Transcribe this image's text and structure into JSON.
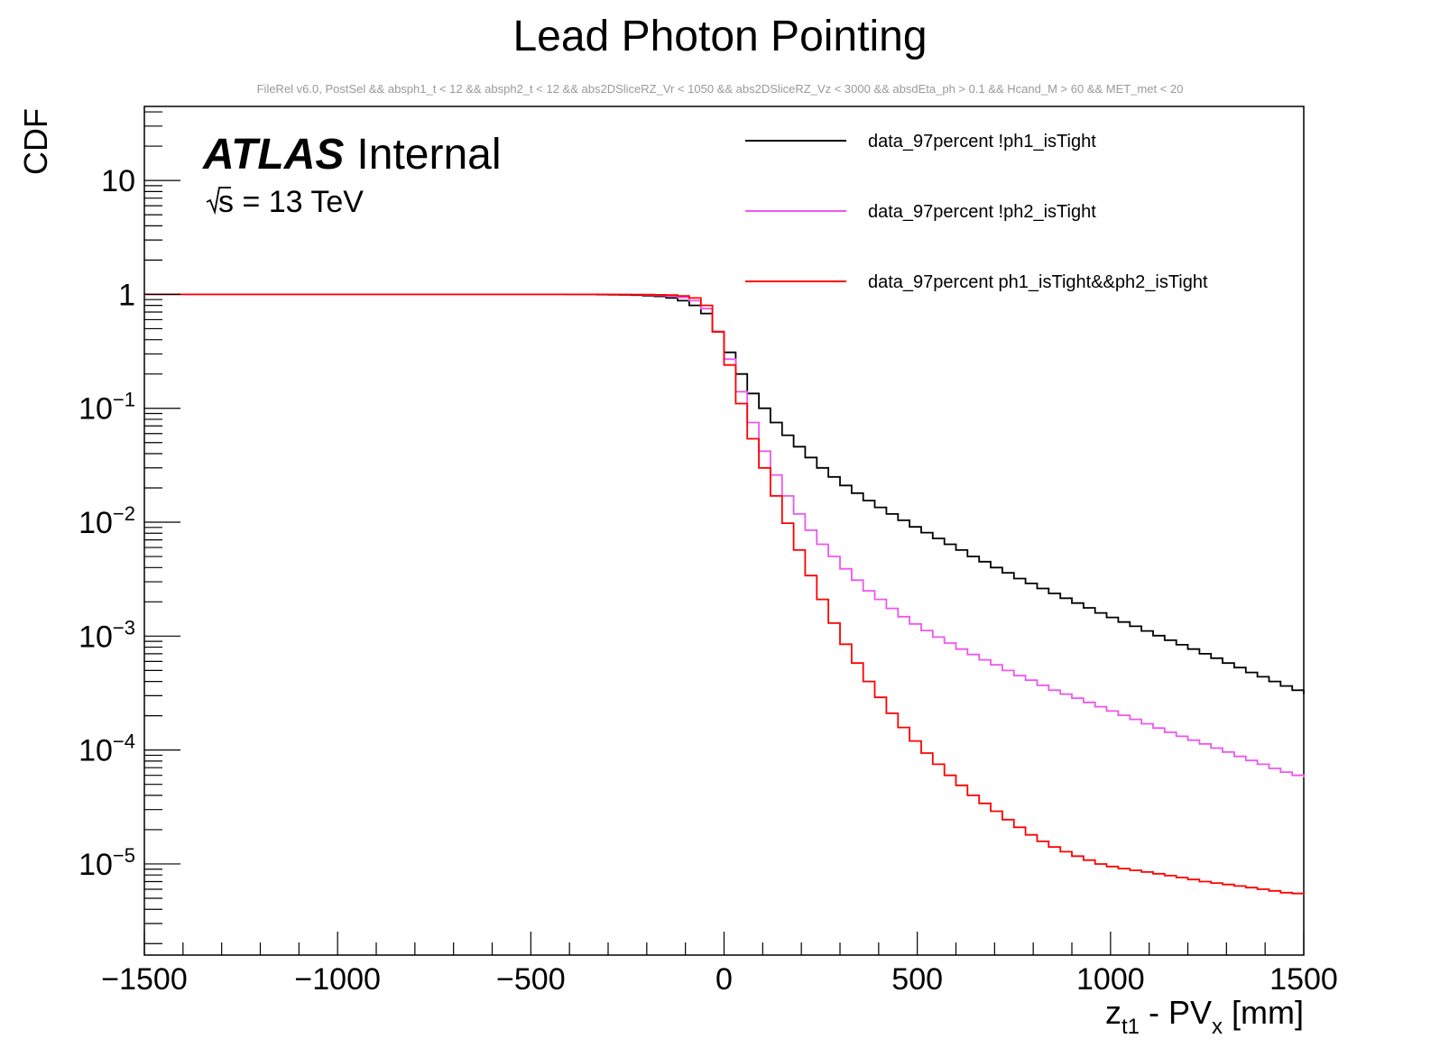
{
  "chart_data": {
    "type": "line",
    "title": "Lead Photon Pointing",
    "subtitle": "FileRel v6.0, PostSel &&  absph1_t < 12 && absph2_t < 12 && abs2DSliceRZ_Vr < 1050 && abs2DSliceRZ_Vz < 3000 && absdEta_ph > 0.1 && Hcand_M > 60 && MET_met < 20",
    "xlabel": {
      "base": "z",
      "sub1": "t1",
      "mid": " - PV",
      "sub2": "x",
      "tail": " [mm]"
    },
    "ylabel": "CDF",
    "xlim": [
      -1500,
      1500
    ],
    "ylim_log10": [
      -5.8,
      1.65
    ],
    "x_ticks": [
      {
        "v": -1500,
        "label": "−1500"
      },
      {
        "v": -1000,
        "label": "−1000"
      },
      {
        "v": -500,
        "label": "−500"
      },
      {
        "v": 0,
        "label": "0"
      },
      {
        "v": 500,
        "label": "500"
      },
      {
        "v": 1000,
        "label": "1000"
      },
      {
        "v": 1500,
        "label": "1500"
      }
    ],
    "y_ticks": [
      {
        "exp": 1,
        "base": "10",
        "sup": ""
      },
      {
        "exp": 0,
        "base": "1",
        "sup": ""
      },
      {
        "exp": -1,
        "base": "10",
        "sup": "−1"
      },
      {
        "exp": -2,
        "base": "10",
        "sup": "−2"
      },
      {
        "exp": -3,
        "base": "10",
        "sup": "−3"
      },
      {
        "exp": -4,
        "base": "10",
        "sup": "−4"
      },
      {
        "exp": -5,
        "base": "10",
        "sup": "−5"
      }
    ],
    "binning": {
      "start": -30,
      "width": 30
    },
    "series": [
      {
        "name": "data_97percent !ph1_isTight",
        "color": "#000000",
        "flat_from": -410,
        "pre_values": [
          0.995,
          0.993,
          0.99,
          0.985,
          0.975,
          0.96,
          0.93,
          0.88,
          0.8,
          0.68
        ],
        "values": [
          0.47,
          0.31,
          0.2,
          0.135,
          0.1,
          0.075,
          0.058,
          0.046,
          0.037,
          0.03,
          0.025,
          0.021,
          0.018,
          0.0155,
          0.0135,
          0.0118,
          0.0104,
          0.0091,
          0.0081,
          0.0072,
          0.0064,
          0.0057,
          0.005,
          0.0045,
          0.004,
          0.0036,
          0.0032,
          0.0029,
          0.00262,
          0.00237,
          0.00215,
          0.00195,
          0.00177,
          0.0016,
          0.00146,
          0.00133,
          0.00122,
          0.00111,
          0.00101,
          0.00092,
          0.00084,
          0.00077,
          0.0007,
          0.00064,
          0.00058,
          0.00053,
          0.00048,
          0.00044,
          0.0004,
          0.000365,
          0.000335,
          0.00031
        ]
      },
      {
        "name": "data_97percent !ph2_isTight",
        "color": "#ee55ee",
        "flat_from": -1500,
        "pre_values": [
          0.999,
          0.998,
          0.997,
          0.995,
          0.99,
          0.98,
          0.965,
          0.94,
          0.88,
          0.75
        ],
        "values": [
          0.47,
          0.27,
          0.14,
          0.075,
          0.042,
          0.026,
          0.017,
          0.0118,
          0.0085,
          0.0064,
          0.005,
          0.0039,
          0.0031,
          0.0025,
          0.0021,
          0.00175,
          0.00148,
          0.00128,
          0.00112,
          0.00098,
          0.00087,
          0.00077,
          0.00069,
          0.00062,
          0.00056,
          0.0005,
          0.00045,
          0.00041,
          0.00037,
          0.000335,
          0.00031,
          0.000285,
          0.000262,
          0.00024,
          0.00022,
          0.000202,
          0.000186,
          0.00017,
          0.000156,
          0.000143,
          0.000132,
          0.000122,
          0.000113,
          0.000104,
          9.6e-05,
          8.8e-05,
          8.1e-05,
          7.5e-05,
          6.9e-05,
          6.4e-05,
          6e-05,
          5.75e-05
        ]
      },
      {
        "name": "data_97percent ph1_isTight&&ph2_isTight",
        "color": "#ff0000",
        "flat_from": -1500,
        "pre_values": [
          0.9995,
          0.999,
          0.998,
          0.997,
          0.995,
          0.992,
          0.985,
          0.97,
          0.93,
          0.8
        ],
        "values": [
          0.47,
          0.24,
          0.11,
          0.054,
          0.03,
          0.017,
          0.0098,
          0.0057,
          0.0034,
          0.0021,
          0.0013,
          0.00085,
          0.00058,
          0.0004,
          0.00029,
          0.00021,
          0.000158,
          0.00012,
          9.4e-05,
          7.5e-05,
          6e-05,
          4.9e-05,
          4e-05,
          3.4e-05,
          2.9e-05,
          2.45e-05,
          2.1e-05,
          1.8e-05,
          1.58e-05,
          1.41e-05,
          1.28e-05,
          1.17e-05,
          1.08e-05,
          1e-05,
          9.5e-06,
          9.1e-06,
          8.8e-06,
          8.5e-06,
          8.2e-06,
          7.9e-06,
          7.6e-06,
          7.3e-06,
          7e-06,
          6.8e-06,
          6.6e-06,
          6.4e-06,
          6.2e-06,
          6e-06,
          5.8e-06,
          5.6e-06,
          5.5e-06,
          5.4e-06
        ]
      }
    ],
    "annotations": {
      "atlas": "ATLAS",
      "status": "Internal",
      "energy_prefix": "s",
      "energy_suffix": " = 13 TeV"
    },
    "legend_position": "top-right",
    "grid": false
  }
}
